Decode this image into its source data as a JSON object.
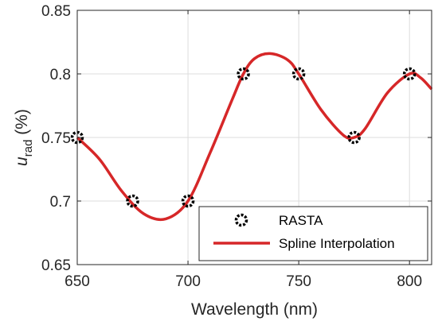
{
  "chart_data": {
    "type": "line",
    "xlabel": "Wavelength (nm)",
    "ylabel": {
      "main": "u",
      "sub": "rad",
      "unit": " (%)"
    },
    "xlim": [
      650,
      810
    ],
    "ylim": [
      0.65,
      0.85
    ],
    "x_ticks": [
      650,
      700,
      750,
      800
    ],
    "y_ticks": [
      0.65,
      0.7,
      0.75,
      0.8,
      0.85
    ],
    "y_tick_labels": [
      "0.65",
      "0.7",
      "0.75",
      "0.8",
      "0.85"
    ],
    "grid": true,
    "legend_position": "bottom-right",
    "series": [
      {
        "name": "RASTA",
        "style": "markers",
        "color": "#000000",
        "x": [
          650,
          675,
          700,
          725,
          750,
          775,
          800
        ],
        "y": [
          0.75,
          0.7,
          0.7,
          0.8,
          0.8,
          0.75,
          0.8
        ]
      },
      {
        "name": "Spline Interpolation",
        "style": "line",
        "color": "#d62728",
        "x": [
          650,
          660,
          670,
          680,
          690,
          700,
          710,
          720,
          725,
          730,
          737,
          745,
          750,
          760,
          770,
          775,
          780,
          790,
          800,
          805,
          810
        ],
        "y": [
          0.75,
          0.733,
          0.708,
          0.69,
          0.686,
          0.7,
          0.738,
          0.78,
          0.8,
          0.812,
          0.816,
          0.811,
          0.8,
          0.772,
          0.752,
          0.75,
          0.757,
          0.785,
          0.8,
          0.797,
          0.788
        ]
      }
    ]
  }
}
